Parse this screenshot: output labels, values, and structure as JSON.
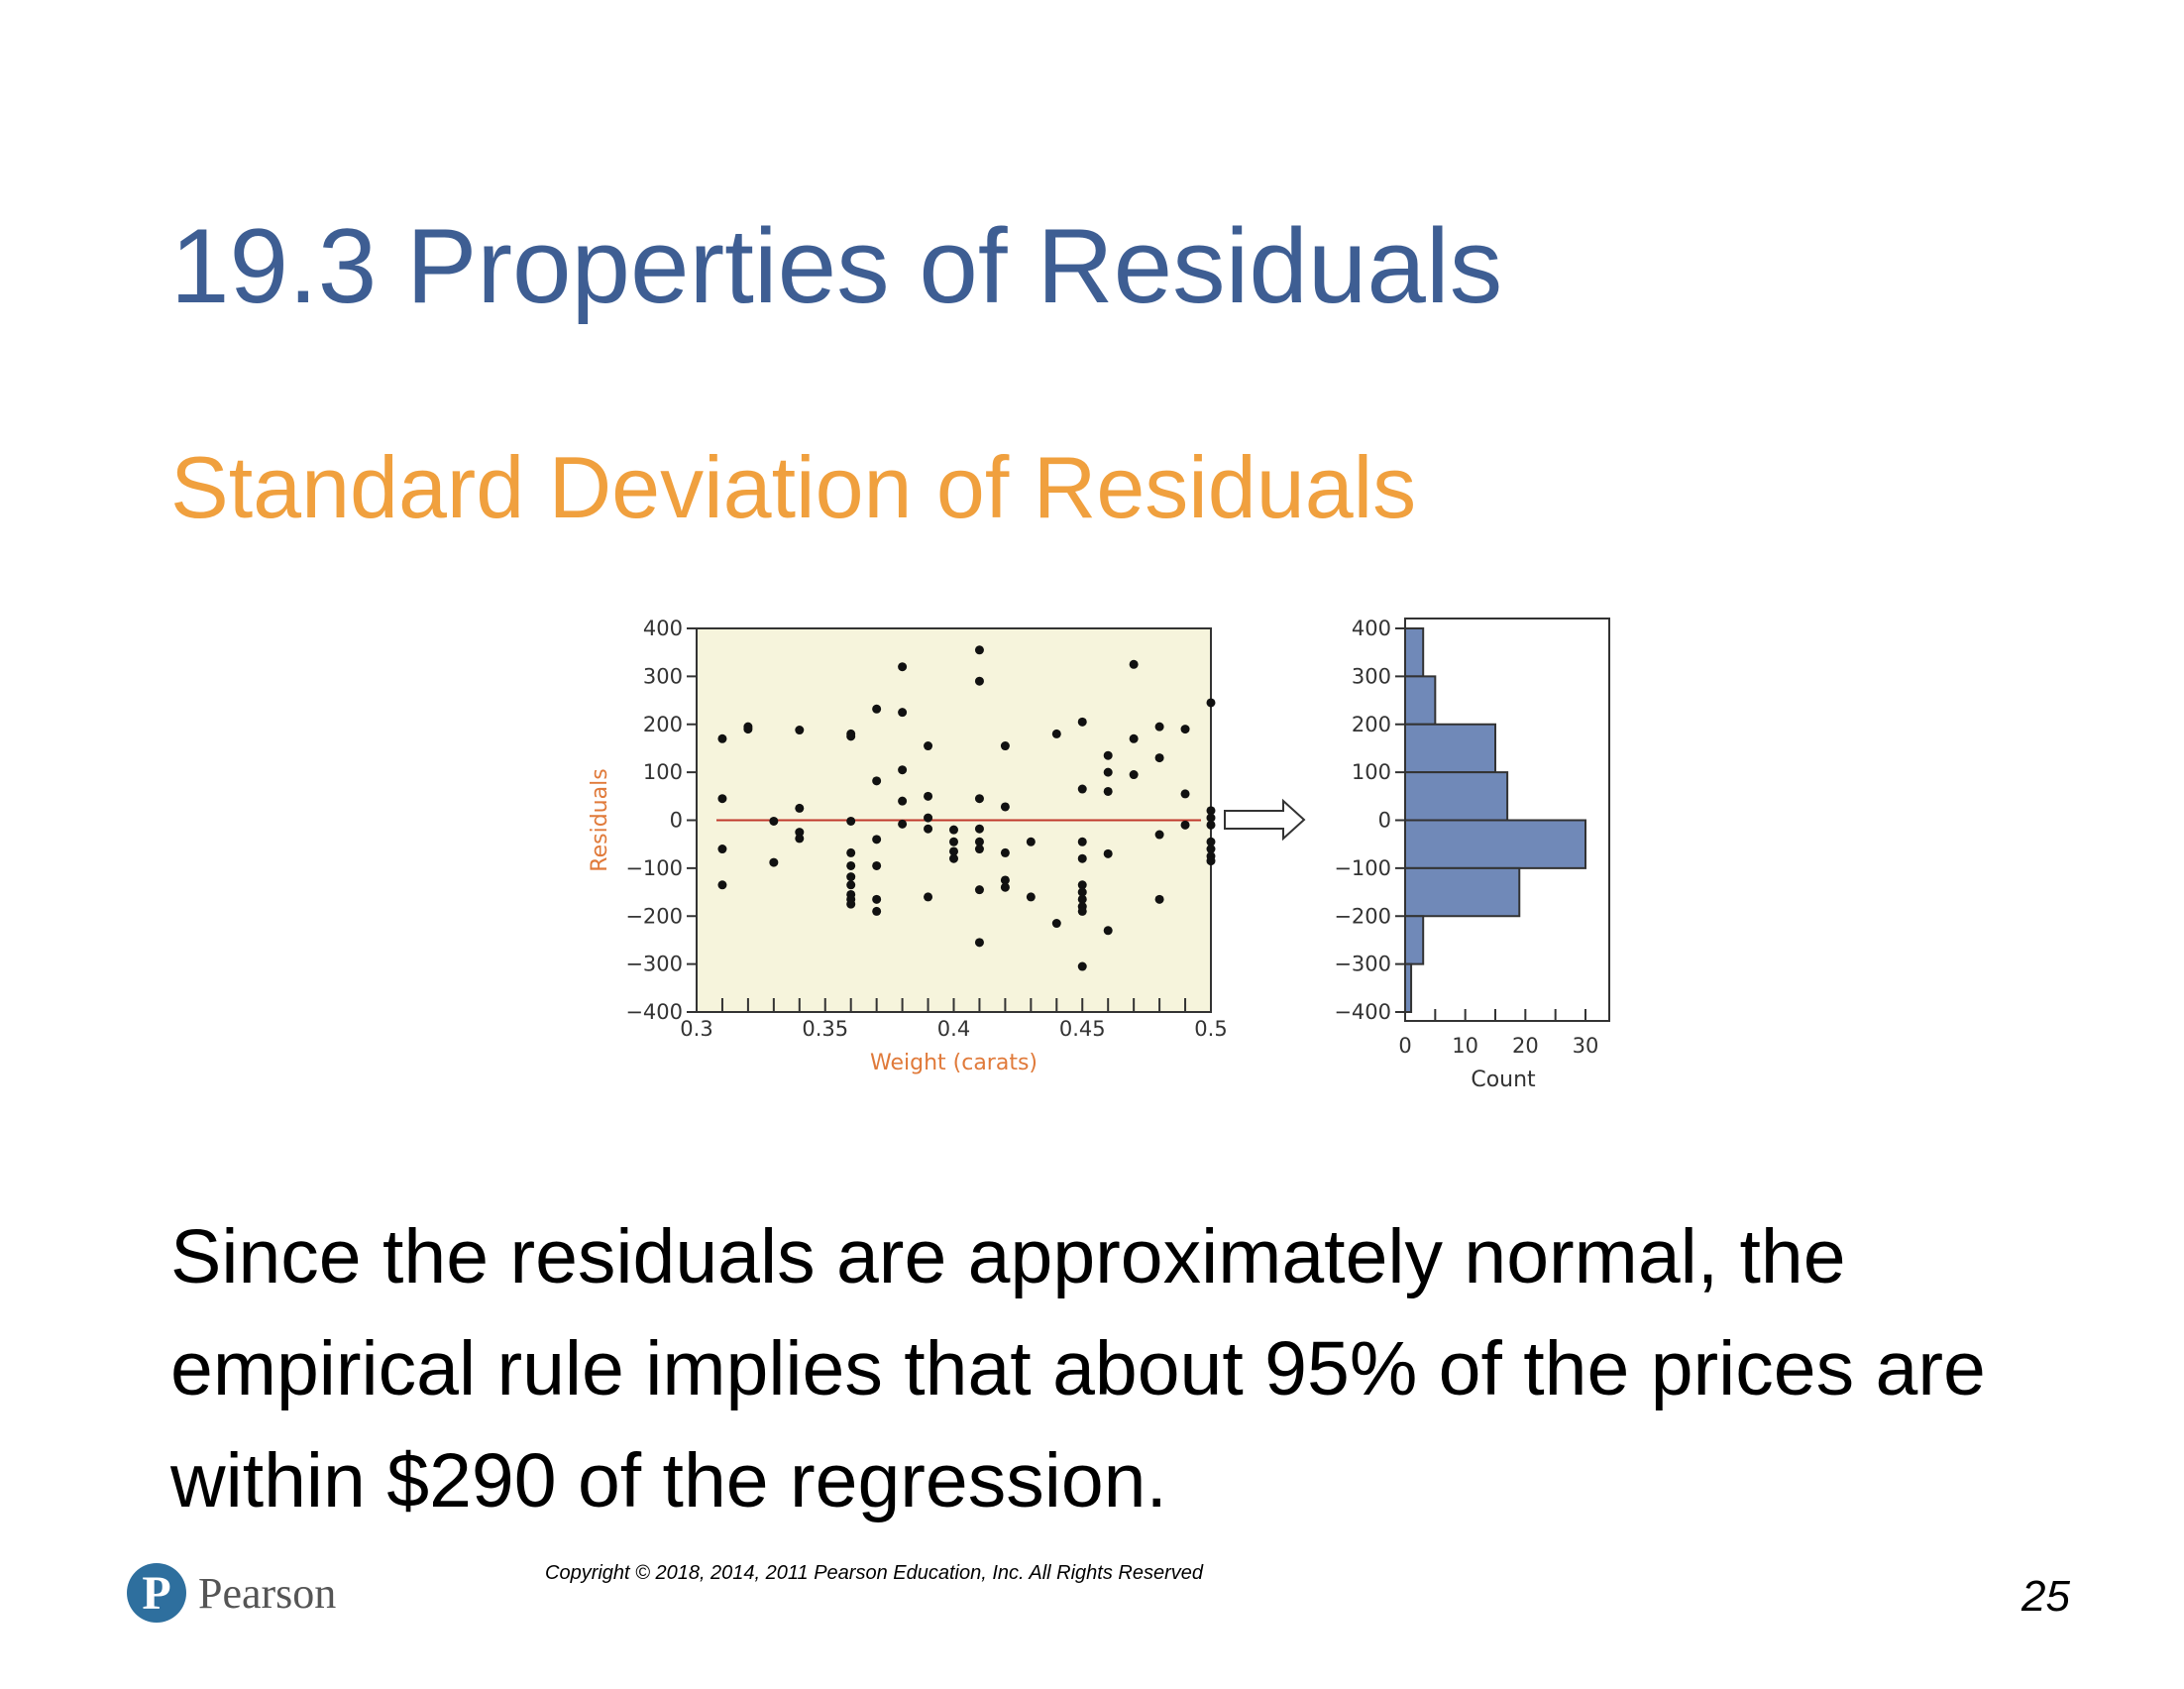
{
  "slide": {
    "title": "19.3 Properties of Residuals",
    "subtitle": "Standard Deviation of Residuals",
    "body": "Since the residuals are approximately normal, the empirical rule implies that about 95% of the prices are within $290 of the regression.",
    "copyright": "Copyright © 2018, 2014, 2011 Pearson Education, Inc. All Rights Reserved",
    "page_number": "25",
    "logo_text": "Pearson",
    "logo_mark": "P"
  },
  "colors": {
    "title": "#3e5e93",
    "subtitle": "#f0a03e",
    "scatter_background": "#f6f4dc",
    "zero_line": "#c0392b",
    "histogram_bar": "#7089b8"
  },
  "chart_data": [
    {
      "type": "scatter",
      "xlabel": "Weight (carats)",
      "ylabel": "Residuals",
      "xlim": [
        0.3,
        0.5
      ],
      "ylim": [
        -400,
        400
      ],
      "x_ticks": [
        0.3,
        0.35,
        0.4,
        0.45,
        0.5
      ],
      "x_tick_labels": [
        "0.3",
        "0.35",
        "0.4",
        "0.45",
        "0.5"
      ],
      "y_ticks": [
        400,
        300,
        200,
        100,
        0,
        -100,
        -200,
        -300,
        -400
      ],
      "y_tick_labels": [
        "400",
        "300",
        "200",
        "100",
        "0",
        "−100",
        "−200",
        "−300",
        "−400"
      ],
      "reference_line": 0,
      "points": [
        [
          0.31,
          170
        ],
        [
          0.31,
          45
        ],
        [
          0.31,
          -60
        ],
        [
          0.31,
          -135
        ],
        [
          0.32,
          195
        ],
        [
          0.32,
          190
        ],
        [
          0.33,
          -2
        ],
        [
          0.33,
          -88
        ],
        [
          0.34,
          188
        ],
        [
          0.34,
          25
        ],
        [
          0.34,
          -25
        ],
        [
          0.34,
          -38
        ],
        [
          0.36,
          180
        ],
        [
          0.36,
          175
        ],
        [
          0.36,
          -2
        ],
        [
          0.36,
          -68
        ],
        [
          0.36,
          -95
        ],
        [
          0.36,
          -118
        ],
        [
          0.36,
          -135
        ],
        [
          0.36,
          -155
        ],
        [
          0.36,
          -165
        ],
        [
          0.36,
          -175
        ],
        [
          0.37,
          232
        ],
        [
          0.37,
          82
        ],
        [
          0.37,
          -40
        ],
        [
          0.37,
          -95
        ],
        [
          0.37,
          -165
        ],
        [
          0.37,
          -190
        ],
        [
          0.38,
          320
        ],
        [
          0.38,
          225
        ],
        [
          0.38,
          105
        ],
        [
          0.38,
          40
        ],
        [
          0.38,
          -8
        ],
        [
          0.39,
          155
        ],
        [
          0.39,
          50
        ],
        [
          0.39,
          5
        ],
        [
          0.39,
          -18
        ],
        [
          0.39,
          -160
        ],
        [
          0.4,
          -20
        ],
        [
          0.4,
          -45
        ],
        [
          0.4,
          -65
        ],
        [
          0.4,
          -80
        ],
        [
          0.41,
          355
        ],
        [
          0.41,
          290
        ],
        [
          0.41,
          45
        ],
        [
          0.41,
          -18
        ],
        [
          0.41,
          -45
        ],
        [
          0.41,
          -60
        ],
        [
          0.41,
          -145
        ],
        [
          0.41,
          -255
        ],
        [
          0.42,
          155
        ],
        [
          0.42,
          28
        ],
        [
          0.42,
          -68
        ],
        [
          0.42,
          -125
        ],
        [
          0.42,
          -140
        ],
        [
          0.43,
          -45
        ],
        [
          0.43,
          -160
        ],
        [
          0.44,
          180
        ],
        [
          0.44,
          -215
        ],
        [
          0.45,
          205
        ],
        [
          0.45,
          65
        ],
        [
          0.45,
          -45
        ],
        [
          0.45,
          -80
        ],
        [
          0.45,
          -135
        ],
        [
          0.45,
          -150
        ],
        [
          0.45,
          -165
        ],
        [
          0.45,
          -180
        ],
        [
          0.45,
          -190
        ],
        [
          0.45,
          -305
        ],
        [
          0.46,
          135
        ],
        [
          0.46,
          100
        ],
        [
          0.46,
          60
        ],
        [
          0.46,
          -70
        ],
        [
          0.46,
          -230
        ],
        [
          0.47,
          325
        ],
        [
          0.47,
          170
        ],
        [
          0.47,
          95
        ],
        [
          0.48,
          195
        ],
        [
          0.48,
          130
        ],
        [
          0.48,
          -30
        ],
        [
          0.48,
          -165
        ],
        [
          0.49,
          190
        ],
        [
          0.49,
          55
        ],
        [
          0.49,
          -10
        ],
        [
          0.5,
          245
        ],
        [
          0.5,
          20
        ],
        [
          0.5,
          5
        ],
        [
          0.5,
          -10
        ],
        [
          0.5,
          -45
        ],
        [
          0.5,
          -60
        ],
        [
          0.5,
          -75
        ],
        [
          0.5,
          -85
        ]
      ]
    },
    {
      "type": "bar",
      "orientation": "horizontal",
      "xlabel": "Count",
      "xlim": [
        0,
        35
      ],
      "ylim": [
        -400,
        400
      ],
      "x_ticks": [
        0,
        10,
        20,
        30
      ],
      "x_tick_labels": [
        "0",
        "10",
        "20",
        "30"
      ],
      "y_ticks": [
        400,
        300,
        200,
        100,
        0,
        -100,
        -200,
        -300,
        -400
      ],
      "y_tick_labels": [
        "400",
        "300",
        "200",
        "100",
        "0",
        "−100",
        "−200",
        "−300",
        "−400"
      ],
      "bins": [
        {
          "from": 300,
          "to": 400,
          "count": 3
        },
        {
          "from": 200,
          "to": 300,
          "count": 5
        },
        {
          "from": 100,
          "to": 200,
          "count": 15
        },
        {
          "from": 0,
          "to": 100,
          "count": 17
        },
        {
          "from": -100,
          "to": 0,
          "count": 30
        },
        {
          "from": -200,
          "to": -100,
          "count": 19
        },
        {
          "from": -300,
          "to": -200,
          "count": 3
        },
        {
          "from": -400,
          "to": -300,
          "count": 1
        }
      ]
    }
  ]
}
